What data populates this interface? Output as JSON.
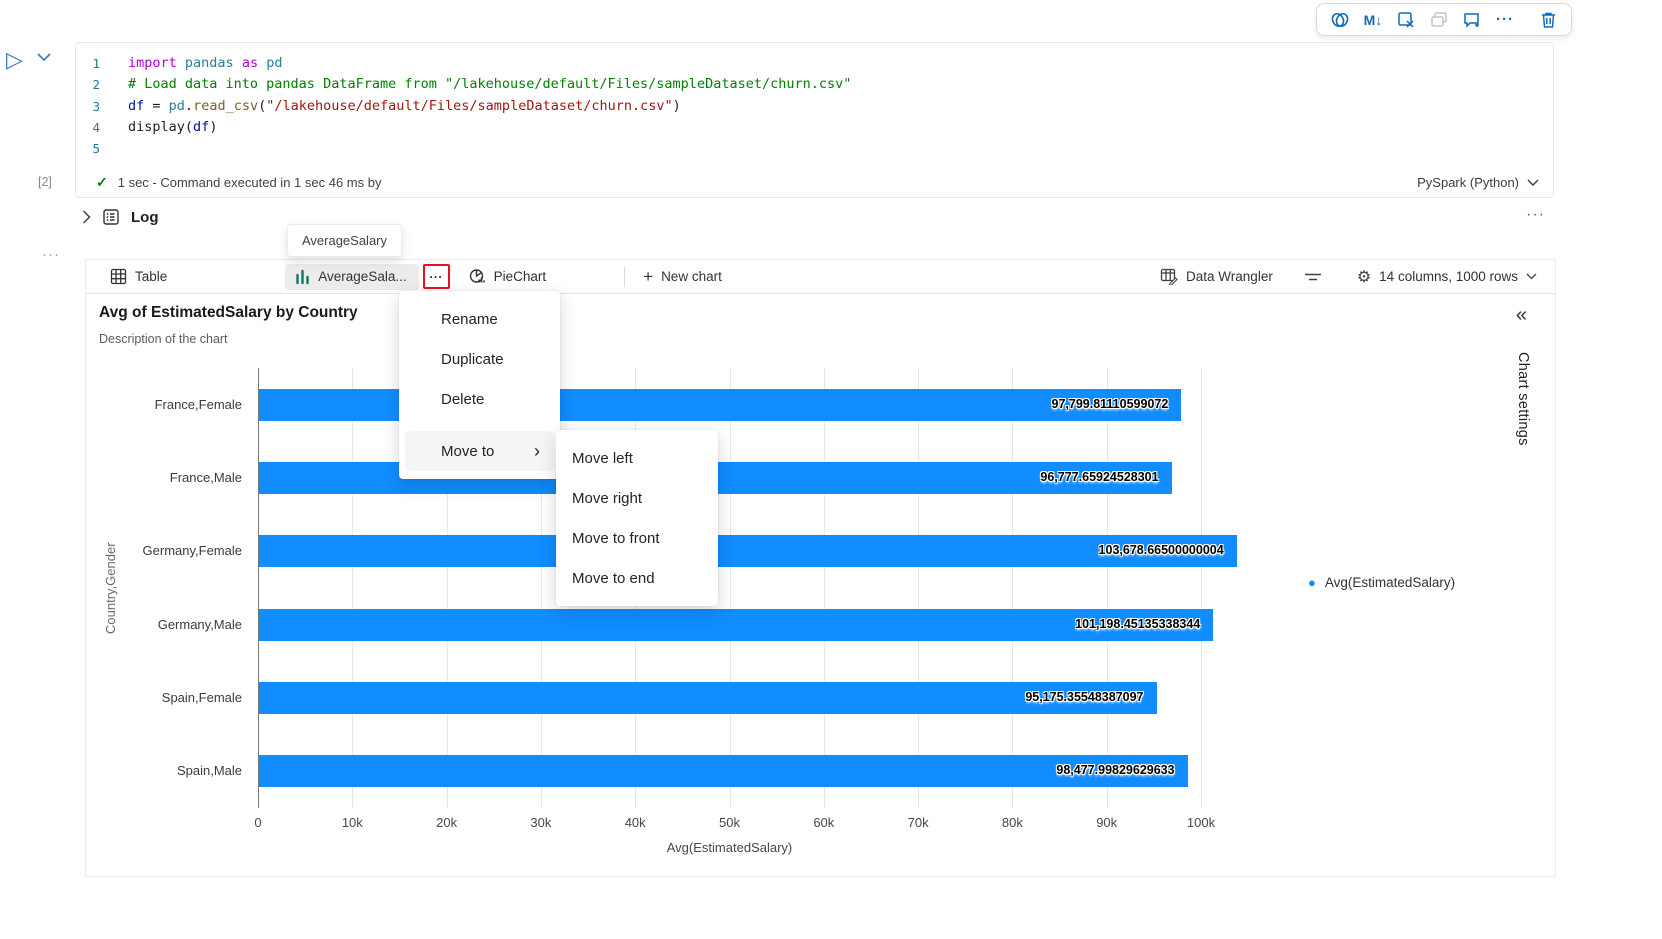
{
  "colors": {
    "accent_blue": "#0f6cbd",
    "bar_color": "#118dff",
    "highlight_red": "#e81123",
    "chart_icon_teal": "#0e7569",
    "success_green": "#107c10"
  },
  "cell_toolbar": {
    "markdown_glyph": "M↓",
    "more_glyph": "···"
  },
  "run_controls": {
    "run_glyph": "▷"
  },
  "code_cell": {
    "execution_label": "[2]",
    "check_glyph": "✓",
    "status": "1 sec - Command executed in 1 sec 46 ms by",
    "kernel": "PySpark (Python)",
    "lines": [
      {
        "num": "1",
        "tokens": [
          [
            "kw",
            "import"
          ],
          [
            "pl",
            " "
          ],
          [
            "mod",
            "pandas"
          ],
          [
            "pl",
            " "
          ],
          [
            "kw",
            "as"
          ],
          [
            "pl",
            " "
          ],
          [
            "mod",
            "pd"
          ]
        ]
      },
      {
        "num": "2",
        "tokens": [
          [
            "com",
            "# Load data into pandas DataFrame from \"/lakehouse/default/Files/sampleDataset/churn.csv\""
          ]
        ]
      },
      {
        "num": "3",
        "tokens": [
          [
            "var",
            "df"
          ],
          [
            "pl",
            " = "
          ],
          [
            "mod",
            "pd"
          ],
          [
            "pl",
            "."
          ],
          [
            "fn",
            "read_csv"
          ],
          [
            "pl",
            "("
          ],
          [
            "str",
            "\"/lakehouse/default/Files/sampleDataset/churn.csv\""
          ],
          [
            "pl",
            ")"
          ]
        ]
      },
      {
        "num": "4",
        "tokens": [
          [
            "pl",
            "display"
          ],
          [
            "pl",
            "("
          ],
          [
            "var",
            "df"
          ],
          [
            "pl",
            ")"
          ]
        ]
      },
      {
        "num": "5",
        "tokens": []
      }
    ]
  },
  "log_section": {
    "label": "Log",
    "more_glyph": "···",
    "gutter_more_glyph": "···"
  },
  "tooltip": {
    "text": "AverageSalary"
  },
  "tabs": {
    "table": "Table",
    "selected_chart": "AverageSala...",
    "more_glyph": "···",
    "pie": "PieChart",
    "plus_glyph": "+",
    "new_chart": "New chart"
  },
  "tabbar_right": {
    "data_wrangler": "Data Wrangler",
    "gear_glyph": "⚙",
    "columns_info": "14 columns, 1000 rows"
  },
  "context_menu": {
    "items": [
      "Rename",
      "Duplicate",
      "Delete"
    ],
    "move_to": "Move to",
    "arrow_glyph": "›",
    "submenu": [
      "Move left",
      "Move right",
      "Move to front",
      "Move to end"
    ]
  },
  "chart_settings_panel": {
    "collapse_glyph": "«",
    "label": "Chart settings"
  },
  "legend_dot_glyph": "●",
  "chart_data": {
    "type": "bar",
    "orientation": "horizontal",
    "title": "Avg of EstimatedSalary by Country",
    "subtitle": "Description of the chart",
    "categories": [
      "France,Female",
      "France,Male",
      "Germany,Female",
      "Germany,Male",
      "Spain,Female",
      "Spain,Male"
    ],
    "values": [
      97799.81110599072,
      96777.65924528301,
      103678.66500000004,
      101198.45135338344,
      95175.35548387097,
      98477.99829629633
    ],
    "value_labels": [
      "97,799.81110599072",
      "96,777.65924528301",
      "103,678.66500000004",
      "101,198.45135338344",
      "95,175.35548387097",
      "98,477.99829629633"
    ],
    "xlabel": "Avg(EstimatedSalary)",
    "ylabel": "Country,Gender",
    "xlim": [
      0,
      100000
    ],
    "xticks": [
      "0",
      "10k",
      "20k",
      "30k",
      "40k",
      "50k",
      "60k",
      "70k",
      "80k",
      "90k",
      "100k"
    ],
    "legend": [
      "Avg(EstimatedSalary)"
    ],
    "legend_position": "right",
    "bar_color": "#118dff",
    "grid": true
  }
}
